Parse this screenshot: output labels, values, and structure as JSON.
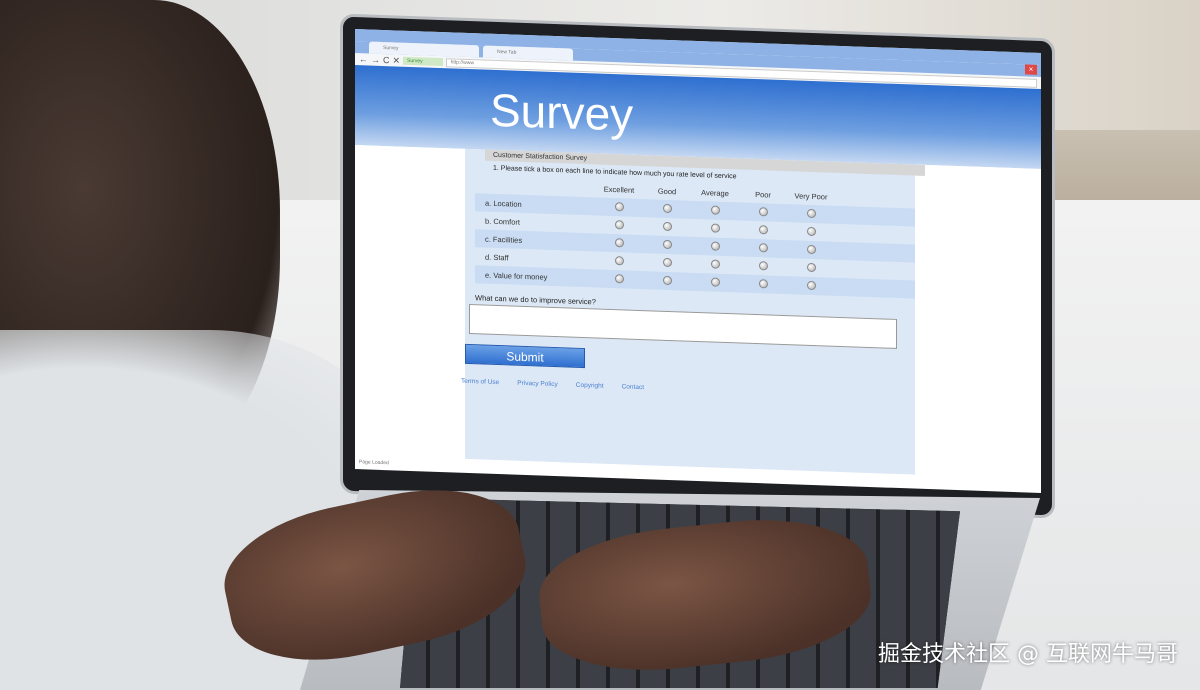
{
  "browser": {
    "tabs": [
      "Survey",
      "New Tab"
    ],
    "address_label": "Survey",
    "url": "http://www",
    "close_icon": "×",
    "nav_icons": [
      "back-arrow",
      "forward-arrow",
      "reload",
      "stop"
    ]
  },
  "survey": {
    "title": "Survey",
    "section": "Customer Statisfaction Survey",
    "question": "1. Please tick a box on each line to indicate how much you rate level of service",
    "columns": [
      "Excellent",
      "Good",
      "Average",
      "Poor",
      "Very Poor"
    ],
    "rows": [
      "a. Location",
      "b. Comfort",
      "c. Facilities",
      "d. Staff",
      "e. Value for money"
    ],
    "improve_label": "What can we do to improve service?",
    "submit": "Submit",
    "footer": [
      "Terms of Use",
      "Privacy Policy",
      "Copyright",
      "Contact"
    ],
    "status": "Page Loaded"
  },
  "watermark": "掘金技术社区 @ 互联网牛马哥"
}
